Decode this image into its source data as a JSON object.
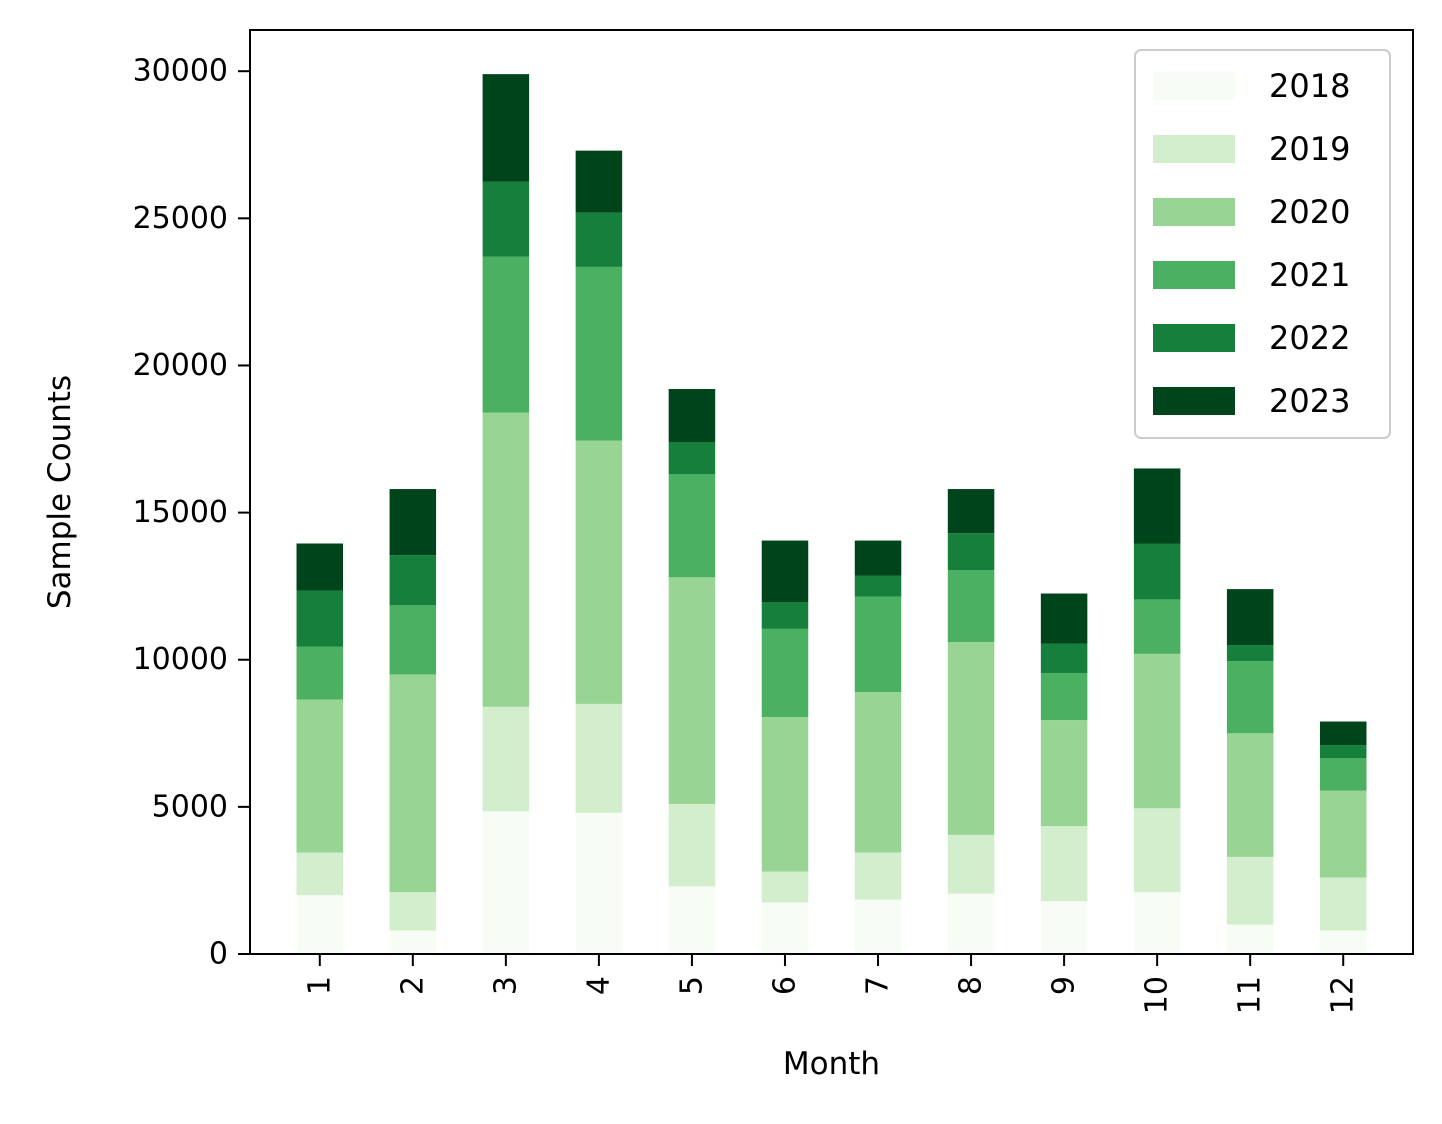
{
  "chart_data": {
    "type": "bar",
    "stacked": true,
    "title": "",
    "xlabel": "Month",
    "ylabel": "Sample Counts",
    "categories": [
      "1",
      "2",
      "3",
      "4",
      "5",
      "6",
      "7",
      "8",
      "9",
      "10",
      "11",
      "12"
    ],
    "ylim": [
      0,
      31400
    ],
    "yticks": [
      0,
      5000,
      10000,
      15000,
      20000,
      25000,
      30000
    ],
    "grid": false,
    "legend_position": "top-right",
    "series": [
      {
        "name": "2018",
        "color": "#f7fcf5",
        "values": [
          2000,
          800,
          4850,
          4800,
          2300,
          1750,
          1850,
          2050,
          1800,
          2100,
          1000,
          800
        ]
      },
      {
        "name": "2019",
        "color": "#d3eecd",
        "values": [
          1450,
          1300,
          3550,
          3700,
          2800,
          1050,
          1600,
          2000,
          2550,
          2850,
          2300,
          1800
        ]
      },
      {
        "name": "2020",
        "color": "#98d594",
        "values": [
          5200,
          7400,
          10000,
          8950,
          7700,
          5250,
          5450,
          6550,
          3600,
          5250,
          4200,
          2950
        ]
      },
      {
        "name": "2021",
        "color": "#4bb062",
        "values": [
          1800,
          2350,
          5300,
          5900,
          3500,
          3000,
          3250,
          2450,
          1600,
          1850,
          2450,
          1100
        ]
      },
      {
        "name": "2022",
        "color": "#157f3b",
        "values": [
          1900,
          1700,
          2550,
          1850,
          1100,
          900,
          700,
          1250,
          1000,
          1900,
          550,
          450
        ]
      },
      {
        "name": "2023",
        "color": "#00441b",
        "values": [
          1600,
          2250,
          3650,
          2100,
          1800,
          2100,
          1200,
          1500,
          1700,
          2550,
          1900,
          800
        ]
      }
    ]
  }
}
